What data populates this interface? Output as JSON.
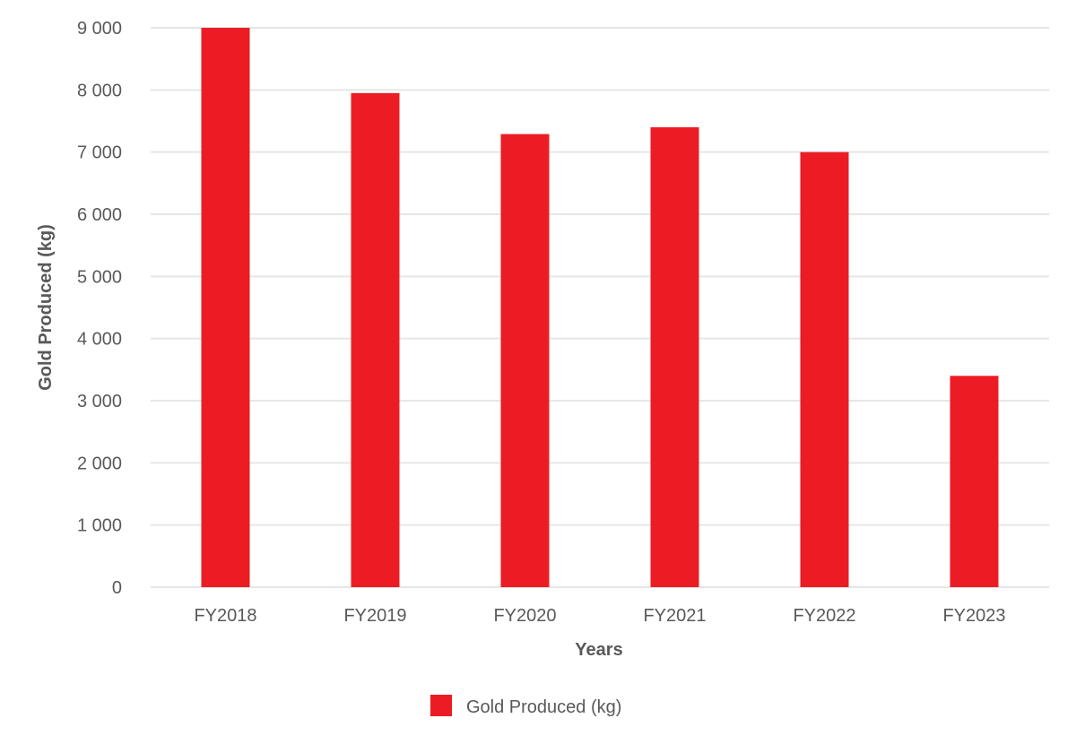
{
  "chart_data": {
    "type": "bar",
    "categories": [
      "FY2018",
      "FY2019",
      "FY2020",
      "FY2021",
      "FY2022",
      "FY2023"
    ],
    "series": [
      {
        "name": "Gold Produced (kg)",
        "color": "#ec1c24",
        "values": [
          9000,
          7950,
          7290,
          7400,
          7000,
          3400
        ]
      }
    ],
    "xlabel": "Years",
    "ylabel": "Gold Produced (kg)",
    "ylim": [
      0,
      9000
    ],
    "yticks": [
      0,
      1000,
      2000,
      3000,
      4000,
      5000,
      6000,
      7000,
      8000,
      9000
    ],
    "ytick_labels": [
      "0",
      "1 000",
      "2 000",
      "3 000",
      "4 000",
      "5 000",
      "6 000",
      "7 000",
      "8 000",
      "9 000"
    ],
    "grid": true,
    "legend_position": "bottom-center"
  }
}
